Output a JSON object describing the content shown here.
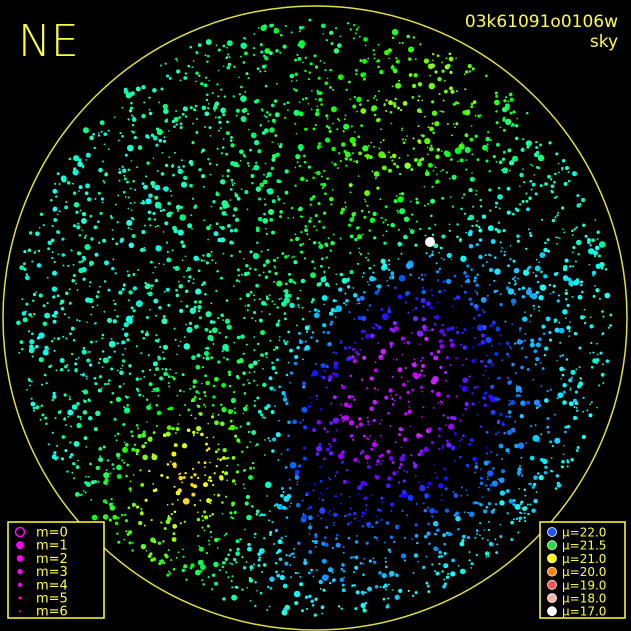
{
  "corner_label": "NE",
  "title": "03k61091o0106w",
  "subtitle": "sky",
  "magnitude_legend": {
    "items": [
      "m=0",
      "m=1",
      "m=2",
      "m=3",
      "m=4",
      "m=5",
      "m=6"
    ],
    "color": "#ff00ff"
  },
  "brightness_legend": {
    "items": [
      {
        "label": "μ=22.0",
        "color": "#2050ff"
      },
      {
        "label": "μ=21.5",
        "color": "#20e040"
      },
      {
        "label": "μ=21.0",
        "color": "#ffff00"
      },
      {
        "label": "μ=20.0",
        "color": "#ff8000"
      },
      {
        "label": "μ=19.0",
        "color": "#ff5050"
      },
      {
        "label": "μ=18.0",
        "color": "#ffb0b0"
      },
      {
        "label": "μ=17.0",
        "color": "#ffffff"
      }
    ]
  }
}
